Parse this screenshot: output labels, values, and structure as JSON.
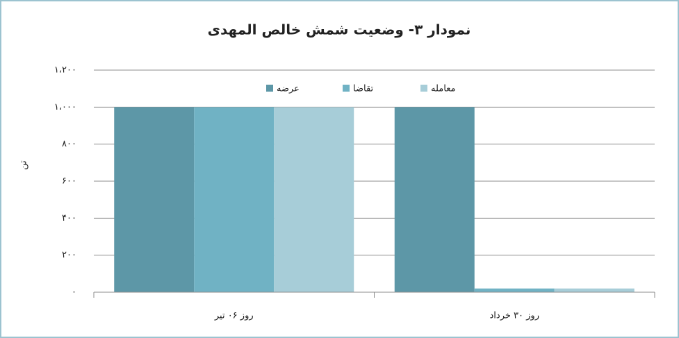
{
  "chart_data": {
    "type": "bar",
    "title": "نمودار ۳- وضعیت شمش خالص المهدی",
    "y_label": "تن",
    "categories": [
      "روز ۰۶ تیر",
      "روز ۳۰ خرداد"
    ],
    "series": [
      {
        "name": "عرضه",
        "color": "#5d97a7",
        "values": [
          1000,
          1000
        ]
      },
      {
        "name": "تقاضا",
        "color": "#70b2c4",
        "values": [
          1000,
          20
        ]
      },
      {
        "name": "معامله",
        "color": "#a7cdd8",
        "values": [
          1000,
          20
        ]
      }
    ],
    "ylim": [
      0,
      1200
    ],
    "yticks": [
      {
        "value": 0,
        "label": "۰"
      },
      {
        "value": 200,
        "label": "۲۰۰"
      },
      {
        "value": 400,
        "label": "۴۰۰"
      },
      {
        "value": 600,
        "label": "۶۰۰"
      },
      {
        "value": 800,
        "label": "۸۰۰"
      },
      {
        "value": 1000,
        "label": "۱،۰۰۰"
      },
      {
        "value": 1200,
        "label": "۱،۲۰۰"
      }
    ],
    "grid": true,
    "legend": "top"
  }
}
